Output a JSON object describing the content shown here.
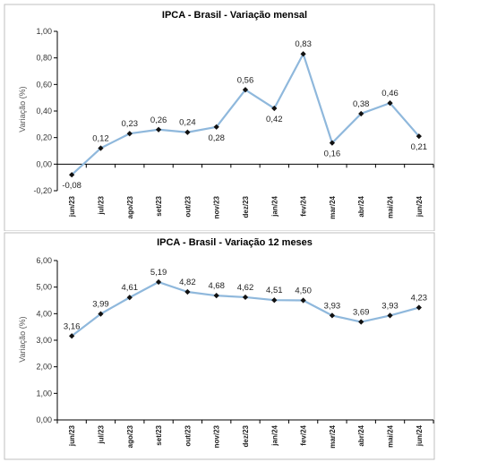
{
  "colors": {
    "line": "#8fb8dc",
    "marker": "#111111",
    "axis": "#000000",
    "frame": "#bfbfbf"
  },
  "chart_data": [
    {
      "type": "line",
      "title": "IPCA - Brasil - Variação mensal",
      "ylabel": "Variação (%)",
      "xlabel": "",
      "ylim": [
        -0.2,
        1.0
      ],
      "yticks": [
        -0.2,
        0.0,
        0.2,
        0.4,
        0.6,
        0.8,
        1.0
      ],
      "ytick_labels": [
        "-0,20",
        "0,00",
        "0,20",
        "0,40",
        "0,60",
        "0,80",
        "1,00"
      ],
      "grid": false,
      "categories": [
        "jun/23",
        "jul/23",
        "ago/23",
        "set/23",
        "out/23",
        "nov/23",
        "dez/23",
        "jan/24",
        "fev/24",
        "mar/24",
        "abr/24",
        "mai/24",
        "jun/24"
      ],
      "series": [
        {
          "values": [
            -0.08,
            0.12,
            0.23,
            0.26,
            0.24,
            0.28,
            0.56,
            0.42,
            0.83,
            0.16,
            0.38,
            0.46,
            0.21
          ],
          "labels": [
            "-0,08",
            "0,12",
            "0,23",
            "0,26",
            "0,24",
            "0,28",
            "0,56",
            "0,42",
            "0,83",
            "0,16",
            "0,38",
            "0,46",
            "0,21"
          ],
          "label_pos": [
            "below",
            "above",
            "above",
            "above",
            "above",
            "below",
            "above",
            "below",
            "above",
            "below",
            "above",
            "above",
            "below"
          ]
        }
      ]
    },
    {
      "type": "line",
      "title": "IPCA - Brasil - Variação 12 meses",
      "ylabel": "Variação (%)",
      "xlabel": "",
      "ylim": [
        0.0,
        6.0
      ],
      "yticks": [
        0,
        1,
        2,
        3,
        4,
        5,
        6
      ],
      "ytick_labels": [
        "0,00",
        "1,00",
        "2,00",
        "3,00",
        "4,00",
        "5,00",
        "6,00"
      ],
      "grid": false,
      "categories": [
        "jun/23",
        "jul/23",
        "ago/23",
        "set/23",
        "out/23",
        "nov/23",
        "dez/23",
        "jan/24",
        "fev/24",
        "mar/24",
        "abr/24",
        "mai/24",
        "jun/24"
      ],
      "series": [
        {
          "values": [
            3.16,
            3.99,
            4.61,
            5.19,
            4.82,
            4.68,
            4.62,
            4.51,
            4.5,
            3.93,
            3.69,
            3.93,
            4.23
          ],
          "labels": [
            "3,16",
            "3,99",
            "4,61",
            "5,19",
            "4,82",
            "4,68",
            "4,62",
            "4,51",
            "4,50",
            "3,93",
            "3,69",
            "3,93",
            "4,23"
          ],
          "label_pos": [
            "above",
            "above",
            "above",
            "above",
            "above",
            "above",
            "above",
            "above",
            "above",
            "above",
            "above",
            "above",
            "above"
          ]
        }
      ]
    }
  ]
}
